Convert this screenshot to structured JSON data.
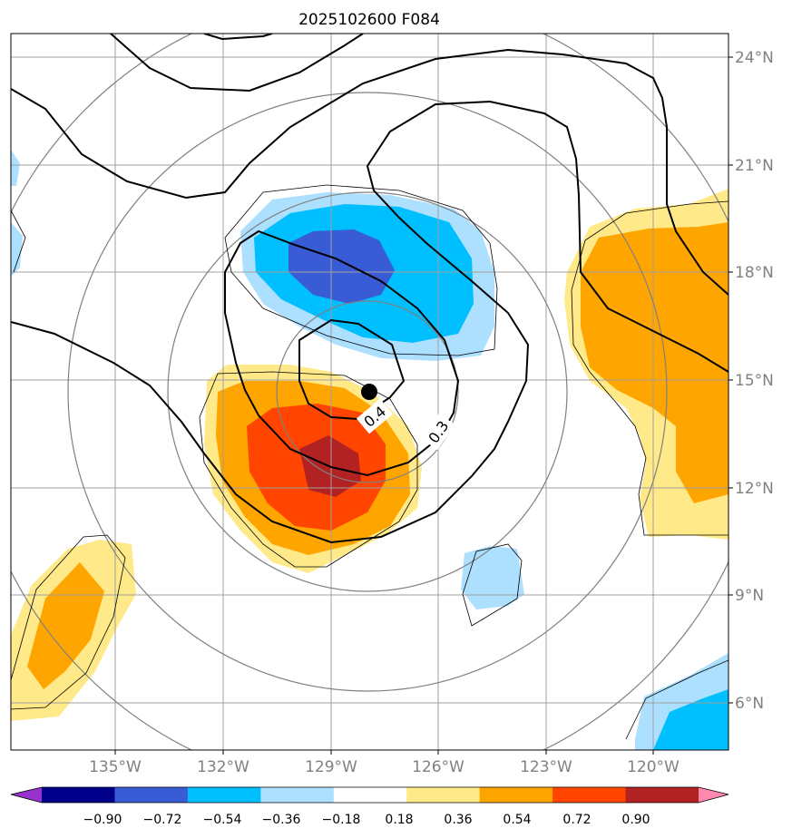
{
  "title": "2025102600 F084",
  "x_ticks": [
    "135°W",
    "132°W",
    "129°W",
    "126°W",
    "123°W",
    "120°W"
  ],
  "y_ticks": [
    "24°N",
    "21°N",
    "18°N",
    "15°N",
    "12°N",
    "9°N",
    "6°N"
  ],
  "contour_labels": [
    "0.4",
    "0.3"
  ],
  "colorbar": {
    "tick_labels": [
      "−0.90",
      "−0.72",
      "−0.54",
      "−0.36",
      "−0.18",
      "0.18",
      "0.36",
      "0.54",
      "0.72",
      "0.90"
    ],
    "colors": [
      "#9932cc",
      "#00008b",
      "#3a5bd6",
      "#00bfff",
      "#addfff",
      "#ffffff",
      "#ffe989",
      "#ffa500",
      "#ff4500",
      "#b22222",
      "#ff88b0"
    ]
  },
  "colors": {
    "light_blue": "#addfff",
    "sky_blue": "#00bfff",
    "royal_blue": "#3a5bd6",
    "light_yellow": "#ffe989",
    "orange": "#ffa500",
    "red_orange": "#ff4500",
    "firebrick": "#b22222",
    "grid": "#a0a0a0",
    "range_rings": "#808080"
  },
  "storm_center_marker": "black-dot"
}
